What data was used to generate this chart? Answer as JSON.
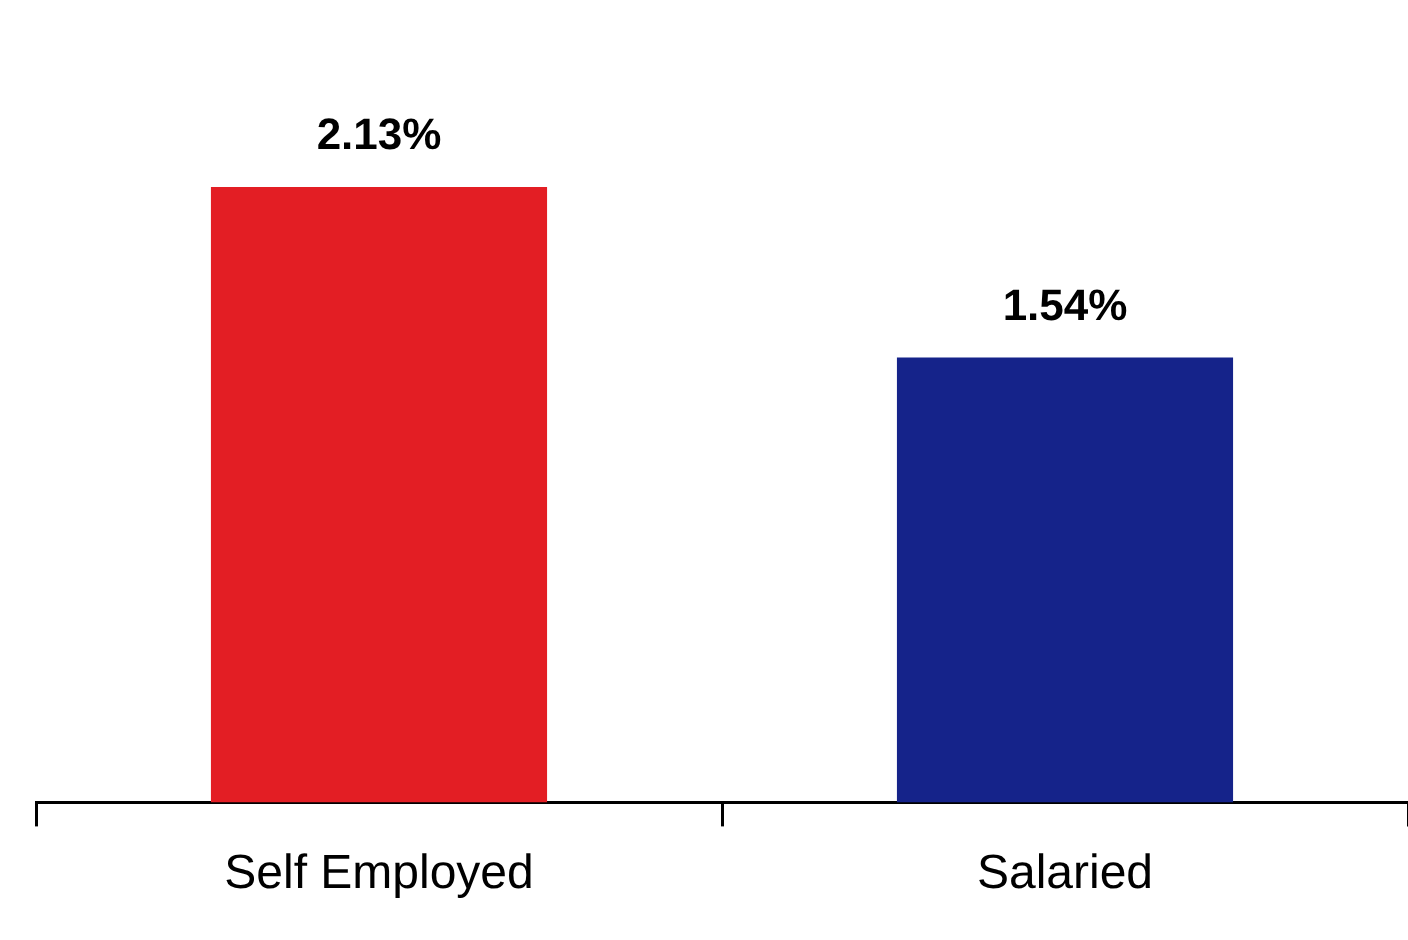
{
  "chart_data": {
    "type": "bar",
    "categories": [
      "Self Employed",
      "Salaried"
    ],
    "values": [
      2.13,
      1.54
    ],
    "colors": [
      "#e31e24",
      "#15238a"
    ],
    "value_labels": [
      "2.13%",
      "1.54%"
    ],
    "grid": false,
    "legend": false
  }
}
